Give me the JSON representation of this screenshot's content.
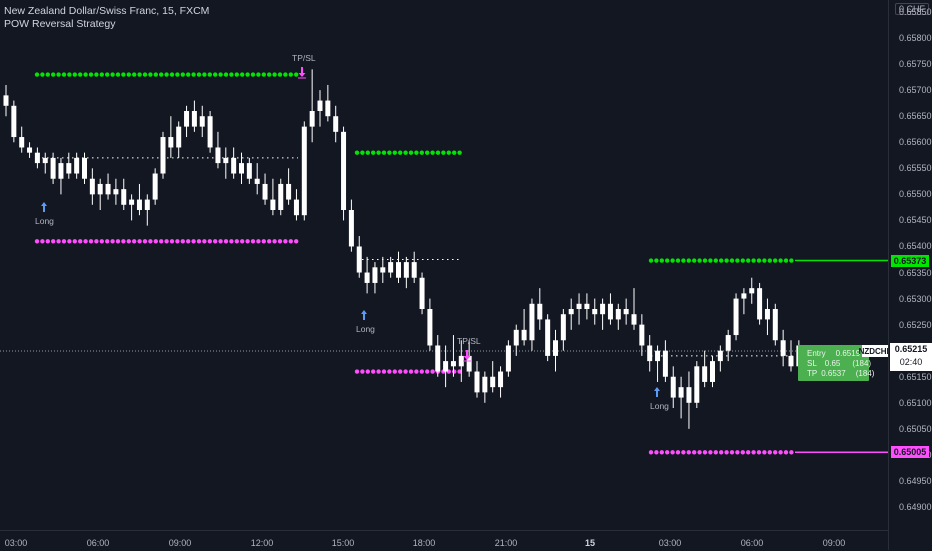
{
  "header": {
    "symbol_line": "New Zealand Dollar/Swiss Franc, 15, FXCM",
    "strategy_line": "POW Reversal Strategy"
  },
  "y_axis": {
    "currency_label": "0 CHF",
    "labels": [
      "0.65850",
      "0.65800",
      "0.65750",
      "0.65700",
      "0.65650",
      "0.65600",
      "0.65550",
      "0.65500",
      "0.65450",
      "0.65400",
      "0.65350",
      "0.65300",
      "0.65250",
      "0.65200",
      "0.65150",
      "0.65100",
      "0.65050",
      "0.65000",
      "0.64950",
      "0.64900"
    ],
    "label_values": [
      0.6585,
      0.658,
      0.6575,
      0.657,
      0.6565,
      0.656,
      0.6555,
      0.655,
      0.6545,
      0.654,
      0.6535,
      0.653,
      0.6525,
      0.652,
      0.6515,
      0.651,
      0.6505,
      0.65,
      0.6495,
      0.649
    ],
    "badge_tp": "0.65373",
    "badge_sl": "0.65005",
    "current_price": "0.65215",
    "countdown": "02:40"
  },
  "x_axis": {
    "labels": [
      "03:00",
      "06:00",
      "09:00",
      "12:00",
      "15:00",
      "18:00",
      "21:00",
      "15",
      "03:00",
      "06:00",
      "09:00"
    ],
    "bold_index": 7
  },
  "symbol_tag": "NZDCHF",
  "trade_box": {
    "entry_label": "Entry",
    "entry_value": "0.6519",
    "sl_label": "SL",
    "sl_value": "0.65",
    "sl_pips": "(184)",
    "tp_label": "TP",
    "tp_value": "0.6537",
    "tp_pips": "(184)"
  },
  "annotations": {
    "long1": "Long",
    "long2": "Long",
    "long3": "Long",
    "tpsl1": "TP/SL",
    "tpsl2": "TP/SL"
  },
  "colors": {
    "background": "#131722",
    "tp_green": "#00e600",
    "sl_magenta": "#ff4dff",
    "candle": "#ffffff",
    "long_arrow": "#5b9cf6",
    "trade_box": "#4caf50"
  },
  "chart_data": {
    "type": "candlestick",
    "ylim": [
      0.6486,
      0.6591
    ],
    "levels": [
      {
        "name": "tp1",
        "value": 0.6573
      },
      {
        "name": "sl1",
        "value": 0.6541
      },
      {
        "name": "tp2",
        "value": 0.6558
      },
      {
        "name": "sl2",
        "value": 0.6516
      },
      {
        "name": "tp3",
        "value": 0.65373
      },
      {
        "name": "sl3",
        "value": 0.65005
      },
      {
        "name": "entry1",
        "value": 0.6557
      },
      {
        "name": "entry2",
        "value": 0.65375
      },
      {
        "name": "entry3",
        "value": 0.6519
      }
    ],
    "candles": [
      [
        0.6569,
        0.6571,
        0.6565,
        0.6567
      ],
      [
        0.6567,
        0.6568,
        0.656,
        0.6561
      ],
      [
        0.6561,
        0.6563,
        0.6558,
        0.6559
      ],
      [
        0.6559,
        0.656,
        0.6557,
        0.6558
      ],
      [
        0.6558,
        0.6559,
        0.6555,
        0.6556
      ],
      [
        0.6556,
        0.6558,
        0.6554,
        0.6557
      ],
      [
        0.6557,
        0.6558,
        0.6552,
        0.6553
      ],
      [
        0.6553,
        0.6557,
        0.655,
        0.6556
      ],
      [
        0.6556,
        0.6558,
        0.6553,
        0.6554
      ],
      [
        0.6554,
        0.6558,
        0.6553,
        0.6557
      ],
      [
        0.6557,
        0.6558,
        0.6552,
        0.6553
      ],
      [
        0.6553,
        0.6555,
        0.6548,
        0.655
      ],
      [
        0.655,
        0.6553,
        0.6547,
        0.6552
      ],
      [
        0.6552,
        0.6554,
        0.6549,
        0.655
      ],
      [
        0.655,
        0.6553,
        0.6548,
        0.6551
      ],
      [
        0.6551,
        0.6553,
        0.6547,
        0.6548
      ],
      [
        0.6548,
        0.655,
        0.6545,
        0.6549
      ],
      [
        0.6549,
        0.6552,
        0.6546,
        0.6547
      ],
      [
        0.6547,
        0.655,
        0.6544,
        0.6549
      ],
      [
        0.6549,
        0.6555,
        0.6548,
        0.6554
      ],
      [
        0.6554,
        0.6562,
        0.6553,
        0.6561
      ],
      [
        0.6561,
        0.6565,
        0.6557,
        0.6559
      ],
      [
        0.6559,
        0.6564,
        0.6557,
        0.6563
      ],
      [
        0.6563,
        0.6567,
        0.6561,
        0.6566
      ],
      [
        0.6566,
        0.6568,
        0.6562,
        0.6563
      ],
      [
        0.6563,
        0.6567,
        0.6561,
        0.6565
      ],
      [
        0.6565,
        0.6566,
        0.6558,
        0.6559
      ],
      [
        0.6559,
        0.6562,
        0.6555,
        0.6556
      ],
      [
        0.6556,
        0.6559,
        0.6553,
        0.6557
      ],
      [
        0.6557,
        0.6559,
        0.6553,
        0.6554
      ],
      [
        0.6554,
        0.6558,
        0.6552,
        0.6556
      ],
      [
        0.6556,
        0.6557,
        0.6552,
        0.6553
      ],
      [
        0.6553,
        0.6556,
        0.655,
        0.6552
      ],
      [
        0.6552,
        0.6554,
        0.6548,
        0.6549
      ],
      [
        0.6549,
        0.6553,
        0.6546,
        0.6547
      ],
      [
        0.6547,
        0.6553,
        0.6546,
        0.6552
      ],
      [
        0.6552,
        0.6555,
        0.6548,
        0.6549
      ],
      [
        0.6549,
        0.6551,
        0.6545,
        0.6546
      ],
      [
        0.6546,
        0.6564,
        0.6545,
        0.6563
      ],
      [
        0.6563,
        0.6574,
        0.656,
        0.6566
      ],
      [
        0.6566,
        0.657,
        0.6563,
        0.6568
      ],
      [
        0.6568,
        0.6571,
        0.6564,
        0.6565
      ],
      [
        0.6565,
        0.6567,
        0.656,
        0.6562
      ],
      [
        0.6562,
        0.6563,
        0.6545,
        0.6547
      ],
      [
        0.6547,
        0.6549,
        0.6539,
        0.654
      ],
      [
        0.654,
        0.6542,
        0.6534,
        0.6535
      ],
      [
        0.6535,
        0.6538,
        0.6531,
        0.6533
      ],
      [
        0.6533,
        0.6537,
        0.6531,
        0.6536
      ],
      [
        0.6536,
        0.6538,
        0.6533,
        0.6535
      ],
      [
        0.6535,
        0.6538,
        0.6534,
        0.6537
      ],
      [
        0.6537,
        0.6539,
        0.6533,
        0.6534
      ],
      [
        0.6534,
        0.6538,
        0.6532,
        0.6537
      ],
      [
        0.6537,
        0.6539,
        0.6533,
        0.6534
      ],
      [
        0.6534,
        0.6535,
        0.6527,
        0.6528
      ],
      [
        0.6528,
        0.653,
        0.652,
        0.6521
      ],
      [
        0.6521,
        0.6523,
        0.6515,
        0.6516
      ],
      [
        0.6516,
        0.6521,
        0.6513,
        0.6518
      ],
      [
        0.6518,
        0.6523,
        0.6515,
        0.6517
      ],
      [
        0.6517,
        0.6522,
        0.6514,
        0.6519
      ],
      [
        0.6519,
        0.6522,
        0.6515,
        0.6516
      ],
      [
        0.6516,
        0.6518,
        0.6511,
        0.6512
      ],
      [
        0.6512,
        0.6516,
        0.651,
        0.6515
      ],
      [
        0.6515,
        0.6518,
        0.6512,
        0.6513
      ],
      [
        0.6513,
        0.6517,
        0.6511,
        0.6516
      ],
      [
        0.6516,
        0.6522,
        0.6515,
        0.6521
      ],
      [
        0.6521,
        0.6525,
        0.6519,
        0.6524
      ],
      [
        0.6524,
        0.6528,
        0.6521,
        0.6522
      ],
      [
        0.6522,
        0.653,
        0.652,
        0.6529
      ],
      [
        0.6529,
        0.6532,
        0.6524,
        0.6526
      ],
      [
        0.6526,
        0.6527,
        0.6518,
        0.6519
      ],
      [
        0.6519,
        0.6524,
        0.6516,
        0.6522
      ],
      [
        0.6522,
        0.6528,
        0.652,
        0.6527
      ],
      [
        0.6527,
        0.653,
        0.6524,
        0.6528
      ],
      [
        0.6528,
        0.6531,
        0.6525,
        0.6529
      ],
      [
        0.6529,
        0.6531,
        0.6526,
        0.6528
      ],
      [
        0.6528,
        0.653,
        0.6525,
        0.6527
      ],
      [
        0.6527,
        0.653,
        0.6524,
        0.6529
      ],
      [
        0.6529,
        0.6531,
        0.6525,
        0.6526
      ],
      [
        0.6526,
        0.6529,
        0.6524,
        0.6528
      ],
      [
        0.6528,
        0.653,
        0.6525,
        0.6527
      ],
      [
        0.6527,
        0.6532,
        0.6524,
        0.6525
      ],
      [
        0.6525,
        0.6527,
        0.6519,
        0.6521
      ],
      [
        0.6521,
        0.6523,
        0.6516,
        0.6518
      ],
      [
        0.6518,
        0.6521,
        0.6514,
        0.652
      ],
      [
        0.652,
        0.6522,
        0.6514,
        0.6515
      ],
      [
        0.6515,
        0.6517,
        0.6509,
        0.6511
      ],
      [
        0.6511,
        0.6515,
        0.6507,
        0.6513
      ],
      [
        0.6513,
        0.6516,
        0.6505,
        0.651
      ],
      [
        0.651,
        0.6518,
        0.6509,
        0.6517
      ],
      [
        0.6517,
        0.652,
        0.6513,
        0.6514
      ],
      [
        0.6514,
        0.6519,
        0.6513,
        0.6518
      ],
      [
        0.6518,
        0.6521,
        0.6516,
        0.652
      ],
      [
        0.652,
        0.6524,
        0.6518,
        0.6523
      ],
      [
        0.6523,
        0.6531,
        0.6522,
        0.653
      ],
      [
        0.653,
        0.6532,
        0.6527,
        0.6531
      ],
      [
        0.6531,
        0.6534,
        0.6529,
        0.6532
      ],
      [
        0.6532,
        0.6533,
        0.6525,
        0.6526
      ],
      [
        0.6526,
        0.653,
        0.6523,
        0.6528
      ],
      [
        0.6528,
        0.6529,
        0.6521,
        0.6522
      ],
      [
        0.6522,
        0.6524,
        0.6517,
        0.6519
      ],
      [
        0.6519,
        0.6522,
        0.6516,
        0.6517
      ],
      [
        0.6517,
        0.6522,
        0.6515,
        0.6521
      ]
    ]
  }
}
